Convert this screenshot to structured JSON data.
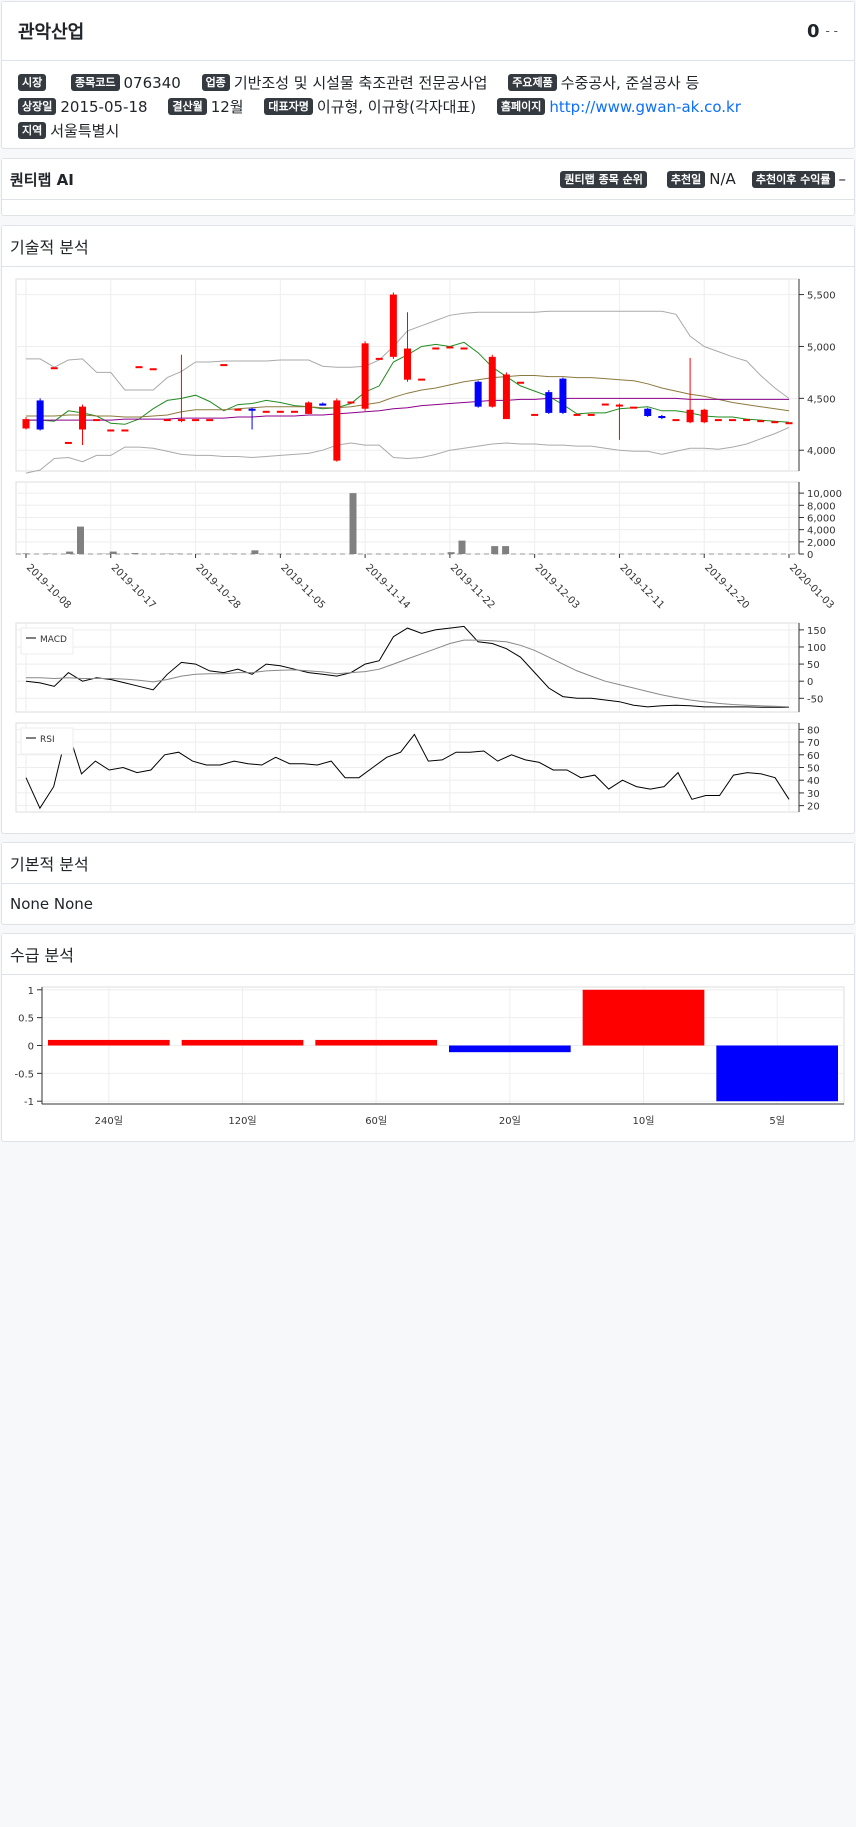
{
  "company": {
    "name": "관악산업",
    "price": "0",
    "change": "- -",
    "market_label": "시장",
    "code_label": "종목코드",
    "code": "076340",
    "industry_label": "업종",
    "industry": "기반조성 및 시설물 축조관련 전문공사업",
    "products_label": "주요제품",
    "products": "수중공사, 준설공사 등",
    "listing_label": "상장일",
    "listing_date": "2015-05-18",
    "fiscal_label": "결산월",
    "fiscal_month": "12월",
    "ceo_label": "대표자명",
    "ceo": "이규형, 이규항(각자대표)",
    "homepage_label": "홈페이지",
    "homepage": "http://www.gwan-ak.co.kr",
    "region_label": "지역",
    "region": "서울특별시"
  },
  "ai": {
    "title": "퀀티랩 AI",
    "rank_label": "퀀티랩 종목 순위",
    "rec_date_label": "추천일",
    "rec_date": "N/A",
    "return_label": "추천이후 수익률",
    "return_value": "–"
  },
  "technical": {
    "title": "기술적 분석"
  },
  "fundamental": {
    "title": "기본적 분석",
    "text": "None None"
  },
  "supply": {
    "title": "수급 분석"
  },
  "colors": {
    "up": "#ff0000",
    "down": "#0000ff",
    "volume": "#808080"
  },
  "chart_data": [
    {
      "type": "candlestick",
      "x_tick_labels": [
        "2019-10-08",
        "2019-10-17",
        "2019-10-28",
        "2019-11-05",
        "2019-11-14",
        "2019-11-22",
        "2019-12-03",
        "2019-12-11",
        "2019-12-20",
        "2020-01-03"
      ],
      "y_tick_labels": [
        "5,500",
        "5,000",
        "4,500",
        "4,000"
      ],
      "ylim": [
        3800,
        5650
      ],
      "candles": [
        {
          "o": 4210,
          "c": 4300,
          "h": 4320,
          "l": 4200
        },
        {
          "o": 4480,
          "c": 4200,
          "h": 4500,
          "l": 4190
        },
        {
          "o": 4800,
          "c": 4800,
          "h": 4800,
          "l": 4800
        },
        {
          "o": 4080,
          "c": 4080,
          "h": 4080,
          "l": 4080
        },
        {
          "o": 4200,
          "c": 4420,
          "h": 4440,
          "l": 4050
        },
        {
          "o": 4300,
          "c": 4300,
          "h": 4300,
          "l": 4300
        },
        {
          "o": 4200,
          "c": 4200,
          "h": 4200,
          "l": 4200
        },
        {
          "o": 4200,
          "c": 4200,
          "h": 4200,
          "l": 4200
        },
        {
          "o": 4810,
          "c": 4810,
          "h": 4810,
          "l": 4810
        },
        {
          "o": 4790,
          "c": 4790,
          "h": 4790,
          "l": 4790
        },
        {
          "o": 4300,
          "c": 4300,
          "h": 4300,
          "l": 4300
        },
        {
          "o": 4300,
          "c": 4300,
          "h": 4920,
          "l": 4270
        },
        {
          "o": 4300,
          "c": 4300,
          "h": 4300,
          "l": 4300
        },
        {
          "o": 4300,
          "c": 4300,
          "h": 4300,
          "l": 4300
        },
        {
          "o": 4830,
          "c": 4830,
          "h": 4830,
          "l": 4830
        },
        {
          "o": 4400,
          "c": 4400,
          "h": 4400,
          "l": 4400
        },
        {
          "o": 4400,
          "c": 4390,
          "h": 4410,
          "l": 4200
        },
        {
          "o": 4380,
          "c": 4380,
          "h": 4380,
          "l": 4380
        },
        {
          "o": 4380,
          "c": 4380,
          "h": 4380,
          "l": 4380
        },
        {
          "o": 4380,
          "c": 4380,
          "h": 4380,
          "l": 4380
        },
        {
          "o": 4350,
          "c": 4460,
          "h": 4470,
          "l": 4350
        },
        {
          "o": 4450,
          "c": 4430,
          "h": 4460,
          "l": 4430
        },
        {
          "o": 3900,
          "c": 4480,
          "h": 4500,
          "l": 3890
        },
        {
          "o": 4470,
          "c": 4470,
          "h": 4470,
          "l": 4470
        },
        {
          "o": 4400,
          "c": 5030,
          "h": 5050,
          "l": 4380
        },
        {
          "o": 4890,
          "c": 4890,
          "h": 4890,
          "l": 4890
        },
        {
          "o": 4900,
          "c": 5500,
          "h": 5520,
          "l": 4880
        },
        {
          "o": 4680,
          "c": 4980,
          "h": 5330,
          "l": 4660
        },
        {
          "o": 4690,
          "c": 4690,
          "h": 4690,
          "l": 4690
        },
        {
          "o": 4990,
          "c": 4990,
          "h": 4990,
          "l": 4990
        },
        {
          "o": 5000,
          "c": 5000,
          "h": 5000,
          "l": 5000
        },
        {
          "o": 4990,
          "c": 4990,
          "h": 4990,
          "l": 4990
        },
        {
          "o": 4660,
          "c": 4420,
          "h": 4670,
          "l": 4410
        },
        {
          "o": 4420,
          "c": 4900,
          "h": 4920,
          "l": 4410
        },
        {
          "o": 4300,
          "c": 4730,
          "h": 4750,
          "l": 4300
        },
        {
          "o": 4660,
          "c": 4660,
          "h": 4660,
          "l": 4660
        },
        {
          "o": 4350,
          "c": 4350,
          "h": 4350,
          "l": 4350
        },
        {
          "o": 4560,
          "c": 4360,
          "h": 4580,
          "l": 4350
        },
        {
          "o": 4690,
          "c": 4360,
          "h": 4700,
          "l": 4350
        },
        {
          "o": 4350,
          "c": 4350,
          "h": 4350,
          "l": 4350
        },
        {
          "o": 4350,
          "c": 4350,
          "h": 4350,
          "l": 4350
        },
        {
          "o": 4450,
          "c": 4450,
          "h": 4450,
          "l": 4450
        },
        {
          "o": 4440,
          "c": 4440,
          "h": 4450,
          "l": 4100
        },
        {
          "o": 4420,
          "c": 4420,
          "h": 4420,
          "l": 4420
        },
        {
          "o": 4400,
          "c": 4330,
          "h": 4410,
          "l": 4320
        },
        {
          "o": 4330,
          "c": 4310,
          "h": 4340,
          "l": 4300
        },
        {
          "o": 4300,
          "c": 4300,
          "h": 4300,
          "l": 4300
        },
        {
          "o": 4270,
          "c": 4390,
          "h": 4890,
          "l": 4260
        },
        {
          "o": 4270,
          "c": 4390,
          "h": 4400,
          "l": 4260
        },
        {
          "o": 4300,
          "c": 4300,
          "h": 4300,
          "l": 4300
        },
        {
          "o": 4300,
          "c": 4300,
          "h": 4300,
          "l": 4300
        },
        {
          "o": 4300,
          "c": 4300,
          "h": 4300,
          "l": 4300
        },
        {
          "o": 4290,
          "c": 4290,
          "h": 4290,
          "l": 4290
        },
        {
          "o": 4280,
          "c": 4280,
          "h": 4280,
          "l": 4280
        },
        {
          "o": 4270,
          "c": 4270,
          "h": 4270,
          "l": 4270
        }
      ],
      "series": [
        {
          "name": "upper band",
          "color": "#aaaaaa",
          "values": [
            4880,
            4880,
            4800,
            4870,
            4880,
            4750,
            4750,
            4580,
            4580,
            4580,
            4700,
            4760,
            4850,
            4850,
            4860,
            4860,
            4860,
            4860,
            4870,
            4870,
            4870,
            4810,
            4800,
            4800,
            4810,
            4870,
            5000,
            5150,
            5200,
            5250,
            5300,
            5320,
            5330,
            5330,
            5330,
            5330,
            5330,
            5340,
            5340,
            5340,
            5340,
            5340,
            5340,
            5340,
            5340,
            5340,
            5310,
            5100,
            5000,
            4950,
            4900,
            4860,
            4720,
            4600,
            4500
          ]
        },
        {
          "name": "lower band",
          "color": "#aaaaaa",
          "values": [
            3780,
            3810,
            3920,
            3930,
            3890,
            3950,
            3950,
            4030,
            4030,
            4020,
            3990,
            3960,
            3950,
            3950,
            3940,
            3940,
            3930,
            3940,
            3950,
            3960,
            3970,
            4000,
            4050,
            4070,
            4050,
            4050,
            3930,
            3920,
            3930,
            3960,
            4000,
            4020,
            4040,
            4060,
            4070,
            4060,
            4060,
            4050,
            4050,
            4040,
            4040,
            4020,
            4000,
            3990,
            3990,
            3960,
            3990,
            4020,
            4020,
            4010,
            4030,
            4060,
            4110,
            4160,
            4220
          ]
        },
        {
          "name": "MA5",
          "color": "#228b22",
          "values": [
            4290,
            4290,
            4280,
            4380,
            4360,
            4330,
            4260,
            4250,
            4300,
            4400,
            4480,
            4500,
            4530,
            4470,
            4380,
            4440,
            4450,
            4480,
            4460,
            4430,
            4420,
            4400,
            4410,
            4450,
            4560,
            4620,
            4850,
            4920,
            5000,
            5020,
            5000,
            5040,
            4940,
            4800,
            4710,
            4620,
            4570,
            4520,
            4440,
            4350,
            4360,
            4360,
            4400,
            4410,
            4420,
            4380,
            4380,
            4360,
            4330,
            4320,
            4320,
            4300,
            4290,
            4280,
            4270
          ]
        },
        {
          "name": "MA20",
          "color": "#8b7a3e",
          "values": [
            4330,
            4330,
            4330,
            4340,
            4340,
            4330,
            4330,
            4320,
            4320,
            4330,
            4340,
            4370,
            4390,
            4390,
            4390,
            4400,
            4410,
            4420,
            4420,
            4420,
            4420,
            4410,
            4410,
            4420,
            4440,
            4460,
            4510,
            4550,
            4580,
            4600,
            4630,
            4660,
            4680,
            4700,
            4710,
            4720,
            4720,
            4710,
            4710,
            4700,
            4700,
            4690,
            4680,
            4670,
            4640,
            4600,
            4570,
            4540,
            4520,
            4490,
            4460,
            4440,
            4420,
            4400,
            4380
          ]
        },
        {
          "name": "MA60",
          "color": "#8b008b",
          "values": [
            4290,
            4290,
            4290,
            4290,
            4290,
            4290,
            4290,
            4300,
            4300,
            4300,
            4300,
            4310,
            4310,
            4310,
            4310,
            4320,
            4320,
            4330,
            4330,
            4330,
            4340,
            4340,
            4350,
            4360,
            4370,
            4380,
            4400,
            4410,
            4430,
            4440,
            4450,
            4460,
            4470,
            4480,
            4480,
            4490,
            4490,
            4500,
            4500,
            4500,
            4500,
            4500,
            4500,
            4500,
            4500,
            4500,
            4500,
            4490,
            4490,
            4490,
            4490,
            4490,
            4490,
            4490,
            4490
          ]
        }
      ]
    },
    {
      "type": "bar",
      "name": "volume",
      "y_tick_labels": [
        "10,000",
        "8,000",
        "6,000",
        "4,000",
        "2,000",
        "0"
      ],
      "ylim": [
        0,
        11500
      ],
      "values": [
        100,
        0,
        80,
        0,
        400,
        4500,
        0,
        50,
        400,
        0,
        150,
        0,
        0,
        50,
        50,
        0,
        0,
        0,
        0,
        60,
        0,
        600,
        0,
        0,
        0,
        0,
        0,
        0,
        0,
        0,
        10000,
        0,
        0,
        0,
        0,
        0,
        0,
        0,
        0,
        300,
        2200,
        0,
        0,
        1300,
        1300,
        0,
        0,
        0,
        0,
        0,
        0,
        0,
        0,
        0,
        0,
        0,
        0,
        0,
        0,
        0,
        0,
        0,
        0,
        0,
        0,
        0,
        0,
        0,
        0,
        0,
        0
      ]
    },
    {
      "type": "line",
      "name": "MACD",
      "legend": "MACD",
      "y_tick_labels": [
        "150",
        "100",
        "50",
        "0",
        "-50"
      ],
      "ylim": [
        -90,
        170
      ],
      "series": [
        {
          "name": "MACD",
          "color": "#000000",
          "values": [
            0,
            -5,
            -15,
            25,
            0,
            10,
            5,
            -5,
            -15,
            -25,
            20,
            55,
            50,
            30,
            25,
            35,
            20,
            50,
            45,
            35,
            25,
            20,
            15,
            25,
            50,
            60,
            130,
            155,
            140,
            150,
            155,
            160,
            115,
            110,
            95,
            70,
            25,
            -20,
            -45,
            -50,
            -50,
            -55,
            -60,
            -70,
            -75,
            -72,
            -70,
            -72,
            -75,
            -75,
            -75,
            -75,
            -76,
            -76,
            -76
          ]
        },
        {
          "name": "signal",
          "color": "#888888",
          "values": [
            10,
            10,
            8,
            10,
            8,
            8,
            8,
            6,
            3,
            -2,
            5,
            15,
            20,
            22,
            22,
            25,
            25,
            30,
            32,
            33,
            30,
            27,
            22,
            25,
            28,
            35,
            50,
            65,
            80,
            95,
            110,
            120,
            120,
            118,
            115,
            105,
            90,
            70,
            50,
            30,
            15,
            0,
            -10,
            -20,
            -30,
            -40,
            -48,
            -55,
            -60,
            -65,
            -68,
            -70,
            -72,
            -73,
            -75
          ]
        }
      ]
    },
    {
      "type": "line",
      "name": "RSI",
      "legend": "RSI",
      "y_tick_labels": [
        "80",
        "70",
        "60",
        "50",
        "40",
        "30",
        "20"
      ],
      "ylim": [
        15,
        85
      ],
      "series": [
        {
          "name": "RSI",
          "color": "#000000",
          "values": [
            42,
            18,
            35,
            80,
            45,
            55,
            48,
            50,
            46,
            48,
            60,
            62,
            55,
            52,
            52,
            55,
            53,
            52,
            58,
            53,
            53,
            52,
            55,
            42,
            42,
            50,
            58,
            62,
            76,
            55,
            56,
            62,
            62,
            63,
            55,
            60,
            56,
            54,
            48,
            48,
            42,
            44,
            33,
            40,
            35,
            33,
            35,
            46,
            25,
            28,
            28,
            44,
            46,
            45,
            42,
            25
          ]
        }
      ]
    },
    {
      "type": "bar",
      "name": "supply",
      "categories": [
        "240일",
        "120일",
        "60일",
        "20일",
        "10일",
        "5일"
      ],
      "values": [
        0.1,
        0.1,
        0.1,
        -0.12,
        1,
        -1
      ],
      "y_tick_labels": [
        "1",
        "0.5",
        "0",
        "-0.5",
        "-1"
      ],
      "ylim": [
        -1.05,
        1.05
      ]
    }
  ]
}
